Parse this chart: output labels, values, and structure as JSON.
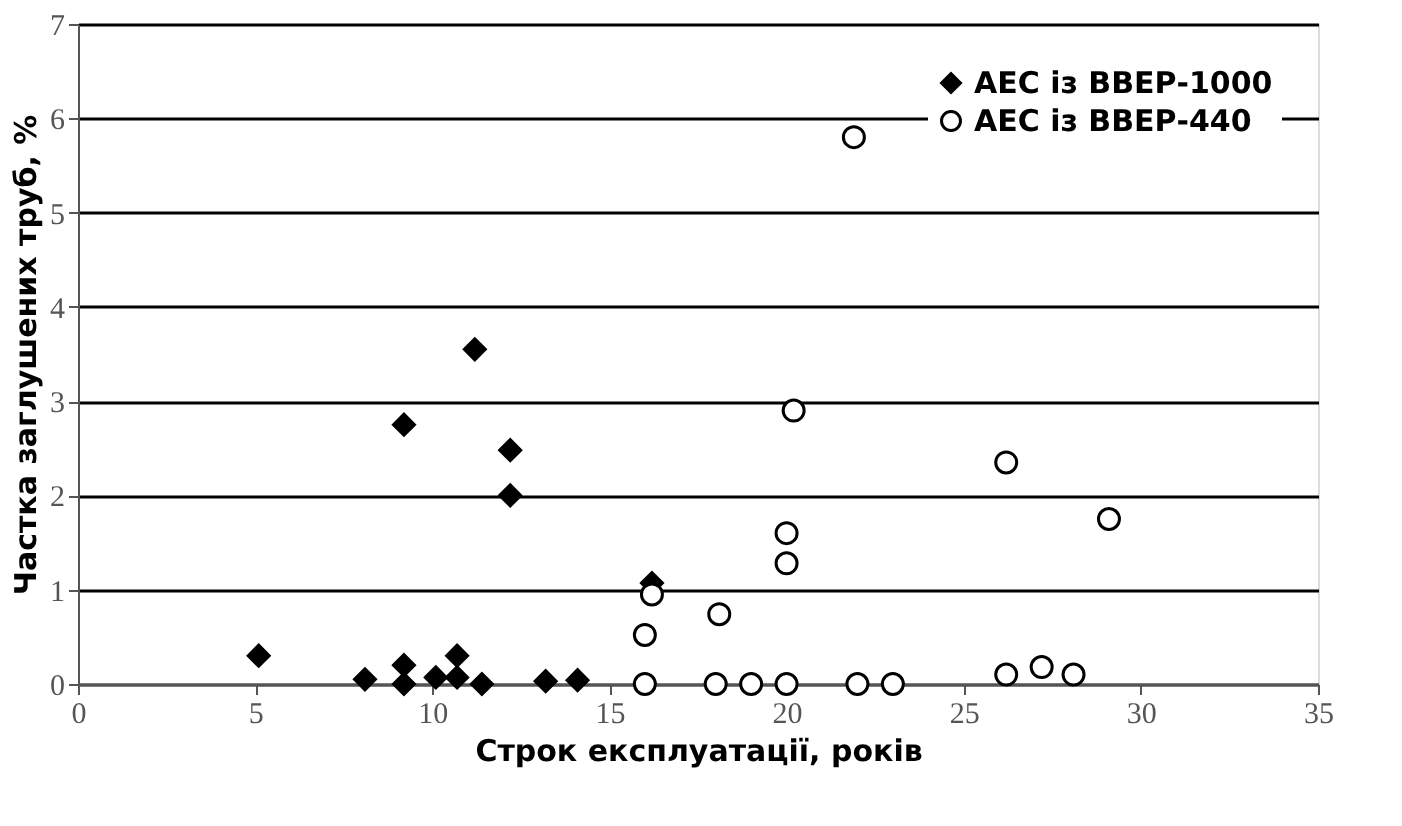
{
  "chart_data": {
    "type": "scatter",
    "xlabel": "Строк експлуатації, років",
    "ylabel": "Частка заглушених труб, %",
    "xlim": [
      0,
      35
    ],
    "xticks": [
      0,
      5,
      10,
      15,
      20,
      25,
      30,
      35
    ],
    "ylim": [
      0,
      7
    ],
    "yticks": [
      0,
      1,
      2,
      3,
      4,
      5,
      6,
      7
    ],
    "grid": "y",
    "legend": "top right",
    "series": [
      {
        "name": "АЕС із ВВЕР-1000",
        "color": "#000000",
        "marker": "diamond",
        "x": [
          5.1,
          8.1,
          9.2,
          9.2,
          10.1,
          10.7,
          10.7,
          11.4,
          13.2,
          14.1,
          9.2,
          11.2,
          12.2,
          12.2,
          16.2
        ],
        "values": [
          0.3,
          0.05,
          0.2,
          0,
          0.07,
          0.3,
          0.07,
          0,
          0.03,
          0.04,
          2.75,
          3.55,
          2.48,
          2.0,
          1.07
        ]
      },
      {
        "name": "АЕС із ВВЕР-440",
        "color": "#000000",
        "marker": "circle",
        "x": [
          21.9,
          20.2,
          26.2,
          29.1,
          20,
          20,
          16.2,
          16,
          18.1,
          26.2,
          27.2,
          28.1,
          16,
          18,
          19,
          20,
          22,
          23
        ],
        "values": [
          5.8,
          2.9,
          2.35,
          1.75,
          1.6,
          1.28,
          0.95,
          0.52,
          0.74,
          0.1,
          0.18,
          0.1,
          0,
          0,
          0,
          0,
          0,
          0
        ]
      }
    ]
  }
}
